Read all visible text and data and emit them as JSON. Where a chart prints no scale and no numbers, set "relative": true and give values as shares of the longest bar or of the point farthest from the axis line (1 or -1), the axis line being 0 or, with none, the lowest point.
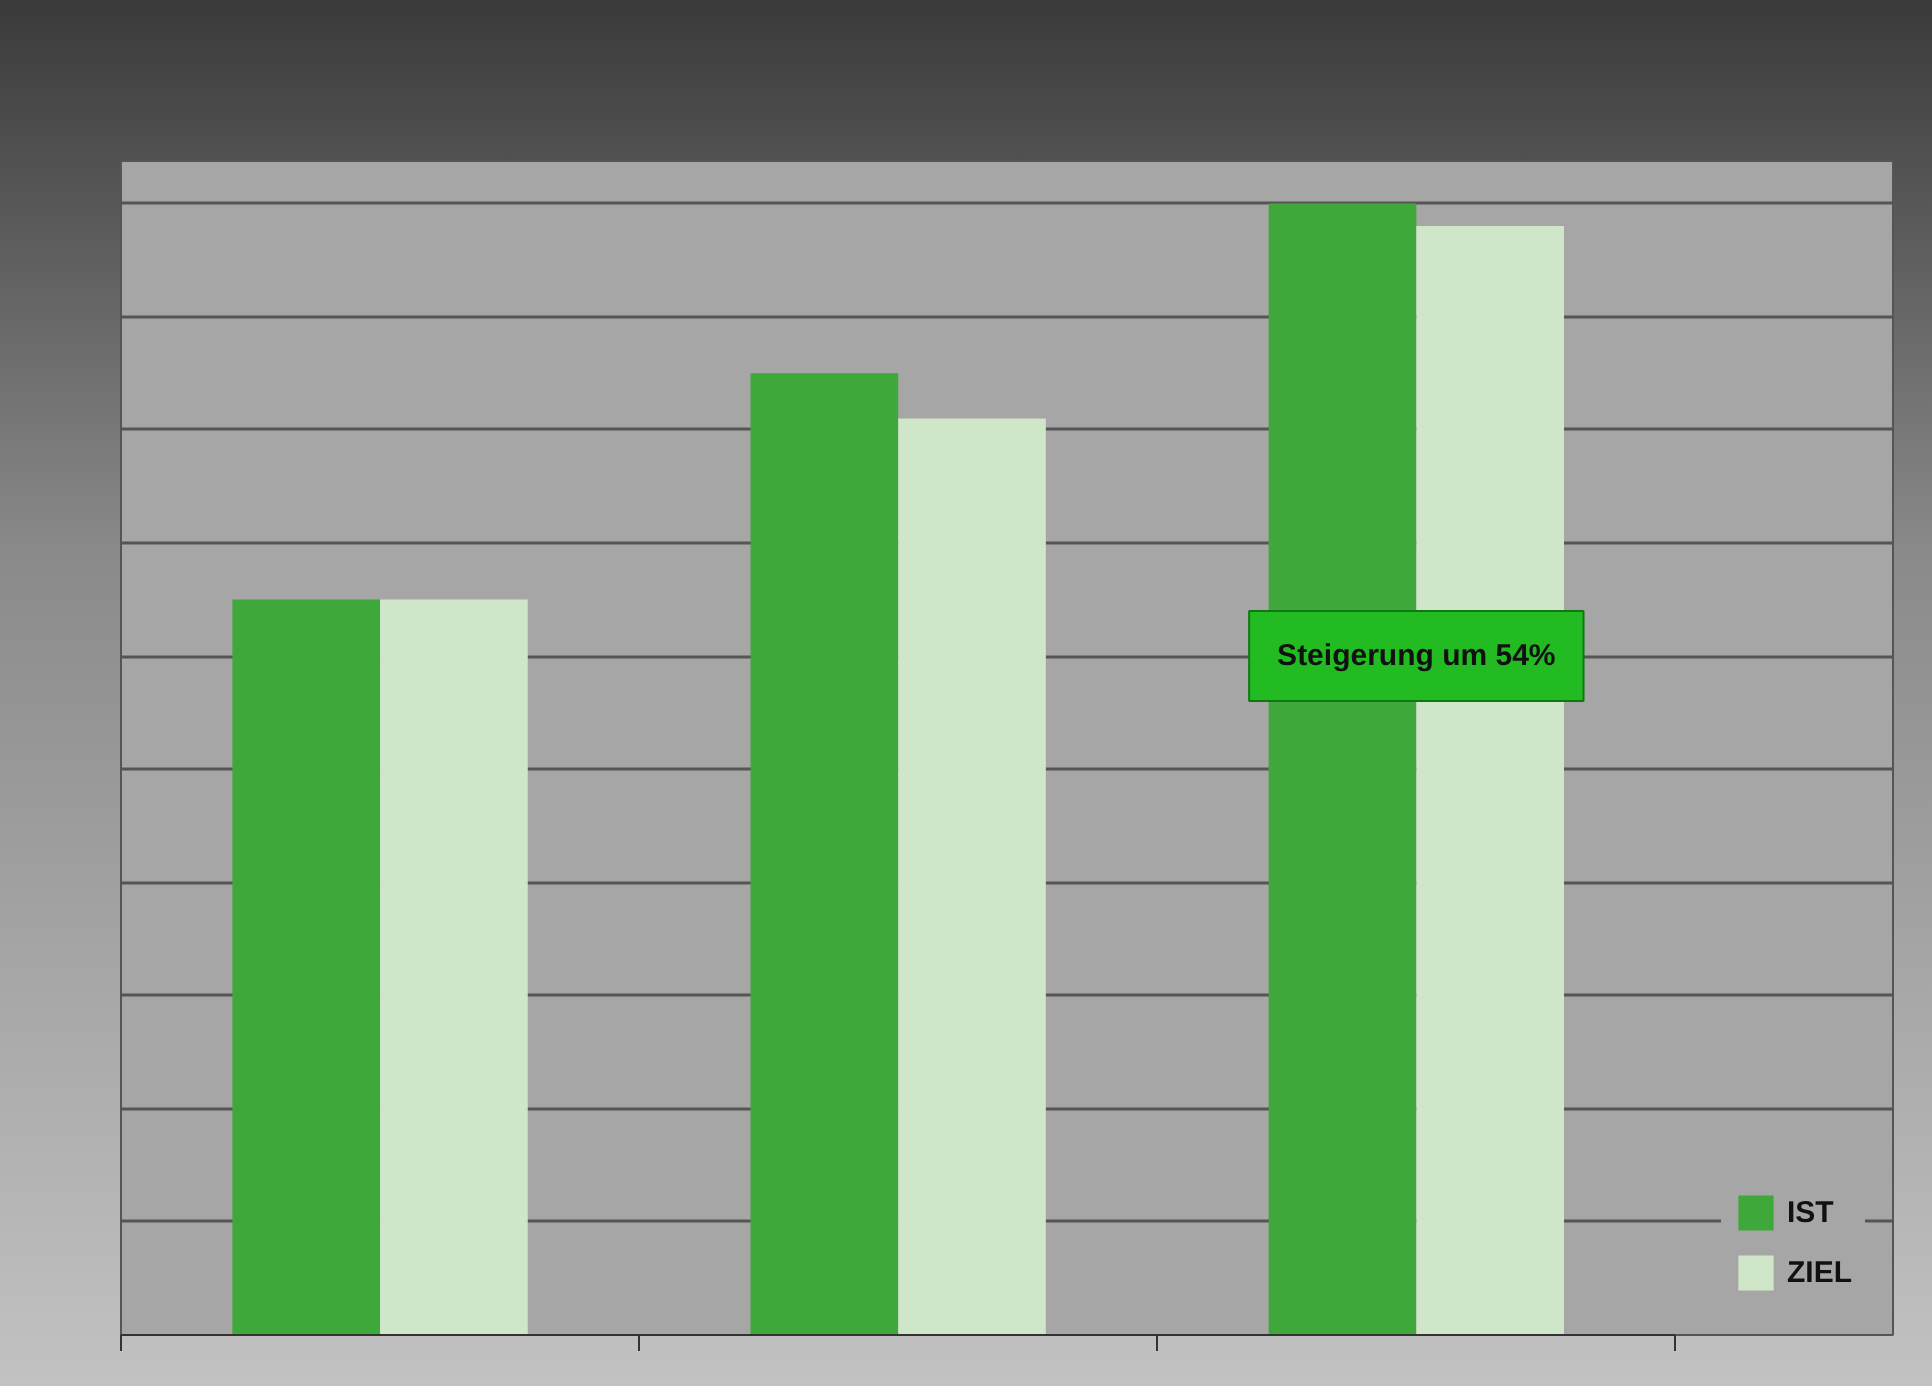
{
  "chart_data": {
    "type": "bar",
    "relative": true,
    "categories": [
      null,
      null,
      null
    ],
    "series": [
      {
        "name": "IST",
        "color": "#3ea83a",
        "values": [
          0.65,
          0.85,
          1
        ]
      },
      {
        "name": "ZIEL",
        "color": "#cfe6c8",
        "values": [
          0.65,
          0.81,
          0.98
        ]
      }
    ],
    "annotations": [
      "Steigerung um 54%"
    ],
    "legend": "bottom right",
    "grid": "y",
    "tick_labels": false
  }
}
